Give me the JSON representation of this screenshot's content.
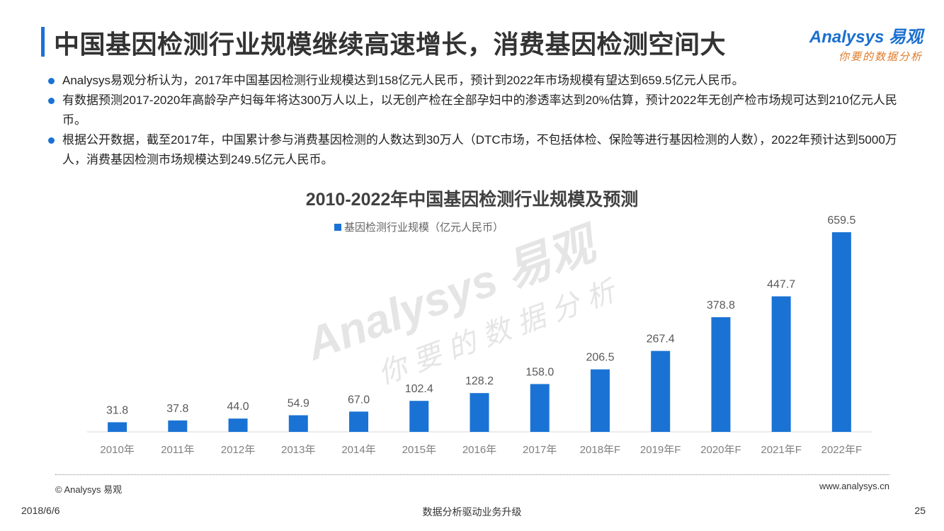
{
  "header": {
    "title": "中国基因检测行业规模继续高速增长，消费基因检测空间大",
    "logo_main": "Analysys 易观",
    "logo_sub": "你要的数据分析"
  },
  "bullets": [
    "Analysys易观分析认为，2017年中国基因检测行业规模达到158亿元人民币，预计到2022年市场规模有望达到659.5亿元人民币。",
    "有数据预测2017-2020年高龄孕产妇每年将达300万人以上，以无创产检在全部孕妇中的渗透率达到20%估算，预计2022年无创产检市场规可达到210亿元人民币。",
    "根据公开数据，截至2017年，中国累计参与消费基因检测的人数达到30万人（DTC市场，不包括体检、保险等进行基因检测的人数），2022年预计达到5000万人，消费基因检测市场规模达到249.5亿元人民币。"
  ],
  "watermark": {
    "main": "Analysys 易观",
    "sub": "你要的数据分析"
  },
  "chart_data": {
    "type": "bar",
    "title": "2010-2022年中国基因检测行业规模及预测",
    "categories": [
      "2010年",
      "2011年",
      "2012年",
      "2013年",
      "2014年",
      "2015年",
      "2016年",
      "2017年",
      "2018年F",
      "2019年F",
      "2020年F",
      "2021年F",
      "2022年F"
    ],
    "series": [
      {
        "name": "基因检测行业规模（亿元人民币）",
        "values": [
          31.8,
          37.8,
          44.0,
          54.9,
          67.0,
          102.4,
          128.2,
          158.0,
          206.5,
          267.4,
          378.8,
          447.7,
          659.5
        ],
        "labels": [
          "31.8",
          "37.8",
          "44.0",
          "54.9",
          "67.0",
          "102.4",
          "128.2",
          "158.0",
          "206.5",
          "267.4",
          "378.8",
          "447.7",
          "659.5"
        ]
      }
    ],
    "ylim": [
      0,
      659.5
    ],
    "grid": false,
    "legend": "top-center",
    "colors": {
      "bar": "#1a73d4",
      "axis": "#d9d9d9",
      "label": "#595959",
      "tick": "#808080"
    }
  },
  "footer": {
    "copyright": "© Analysys 易观",
    "website": "www.analysys.cn",
    "date": "2018/6/6",
    "slogan": "数据分析驱动业务升级",
    "page_number": "25"
  }
}
